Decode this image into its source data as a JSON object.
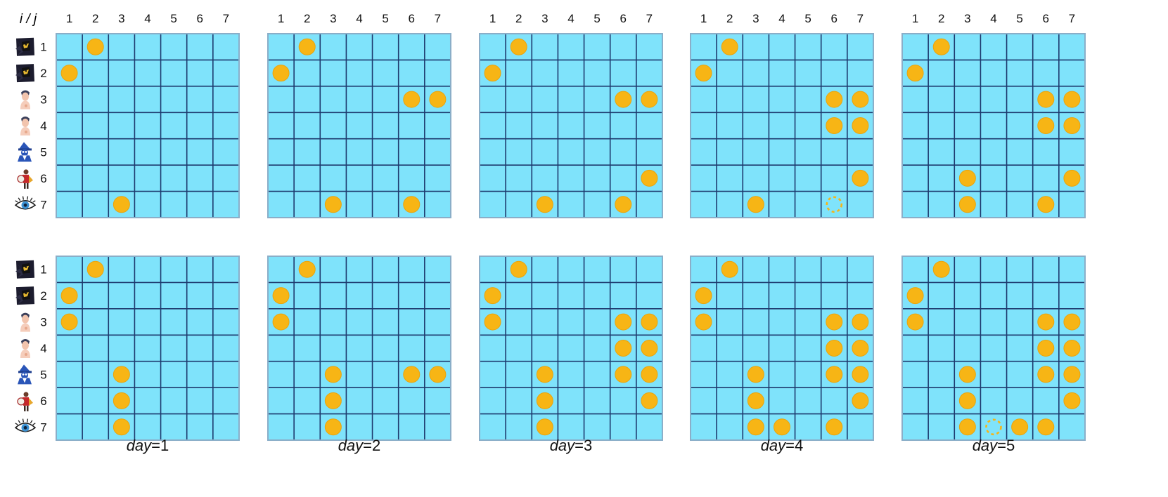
{
  "corner_label": "i / j",
  "column_labels": [
    "1",
    "2",
    "3",
    "4",
    "5",
    "6",
    "7"
  ],
  "row_labels": [
    "1",
    "2",
    "3",
    "4",
    "5",
    "6",
    "7"
  ],
  "row_icons": [
    "hooded-figure-icon",
    "hooded-figure-icon",
    "person-icon",
    "person-icon",
    "wizard-icon",
    "knight-icon",
    "eye-icon"
  ],
  "day_labels": [
    "day=1",
    "day=2",
    "day=3",
    "day=4",
    "day=5"
  ],
  "colors": {
    "cell_fill": "#7fe3fb",
    "grid_line": "#1e3a6e",
    "border": "#8aaec8",
    "coin": "#f7b515",
    "coin_edge": "#eaa40c"
  },
  "panels": [
    {
      "row": 0,
      "day": 1,
      "coins": [
        [
          1,
          2
        ],
        [
          2,
          1
        ],
        [
          7,
          3
        ]
      ],
      "dashed": []
    },
    {
      "row": 0,
      "day": 2,
      "coins": [
        [
          1,
          2
        ],
        [
          2,
          1
        ],
        [
          3,
          6
        ],
        [
          3,
          7
        ],
        [
          7,
          3
        ],
        [
          7,
          6
        ]
      ],
      "dashed": []
    },
    {
      "row": 0,
      "day": 3,
      "coins": [
        [
          1,
          2
        ],
        [
          2,
          1
        ],
        [
          3,
          6
        ],
        [
          3,
          7
        ],
        [
          6,
          7
        ],
        [
          7,
          3
        ],
        [
          7,
          6
        ]
      ],
      "dashed": []
    },
    {
      "row": 0,
      "day": 4,
      "coins": [
        [
          1,
          2
        ],
        [
          2,
          1
        ],
        [
          3,
          6
        ],
        [
          3,
          7
        ],
        [
          4,
          6
        ],
        [
          4,
          7
        ],
        [
          6,
          7
        ],
        [
          7,
          3
        ]
      ],
      "dashed": [
        [
          7,
          6
        ]
      ]
    },
    {
      "row": 0,
      "day": 5,
      "coins": [
        [
          1,
          2
        ],
        [
          2,
          1
        ],
        [
          3,
          6
        ],
        [
          3,
          7
        ],
        [
          4,
          6
        ],
        [
          4,
          7
        ],
        [
          6,
          3
        ],
        [
          6,
          7
        ],
        [
          7,
          3
        ],
        [
          7,
          6
        ]
      ],
      "dashed": []
    },
    {
      "row": 1,
      "day": 1,
      "coins": [
        [
          1,
          2
        ],
        [
          2,
          1
        ],
        [
          3,
          1
        ],
        [
          5,
          3
        ],
        [
          6,
          3
        ],
        [
          7,
          3
        ]
      ],
      "dashed": []
    },
    {
      "row": 1,
      "day": 2,
      "coins": [
        [
          1,
          2
        ],
        [
          2,
          1
        ],
        [
          3,
          1
        ],
        [
          5,
          3
        ],
        [
          5,
          6
        ],
        [
          5,
          7
        ],
        [
          6,
          3
        ],
        [
          7,
          3
        ]
      ],
      "dashed": []
    },
    {
      "row": 1,
      "day": 3,
      "coins": [
        [
          1,
          2
        ],
        [
          2,
          1
        ],
        [
          3,
          1
        ],
        [
          3,
          6
        ],
        [
          3,
          7
        ],
        [
          4,
          6
        ],
        [
          4,
          7
        ],
        [
          5,
          3
        ],
        [
          5,
          6
        ],
        [
          5,
          7
        ],
        [
          6,
          3
        ],
        [
          6,
          7
        ],
        [
          7,
          3
        ]
      ],
      "dashed": []
    },
    {
      "row": 1,
      "day": 4,
      "coins": [
        [
          1,
          2
        ],
        [
          2,
          1
        ],
        [
          3,
          1
        ],
        [
          3,
          6
        ],
        [
          3,
          7
        ],
        [
          4,
          6
        ],
        [
          4,
          7
        ],
        [
          5,
          3
        ],
        [
          5,
          6
        ],
        [
          5,
          7
        ],
        [
          6,
          3
        ],
        [
          6,
          7
        ],
        [
          7,
          3
        ],
        [
          7,
          4
        ],
        [
          7,
          6
        ]
      ],
      "dashed": []
    },
    {
      "row": 1,
      "day": 5,
      "coins": [
        [
          1,
          2
        ],
        [
          2,
          1
        ],
        [
          3,
          1
        ],
        [
          3,
          6
        ],
        [
          3,
          7
        ],
        [
          4,
          6
        ],
        [
          4,
          7
        ],
        [
          5,
          3
        ],
        [
          5,
          6
        ],
        [
          5,
          7
        ],
        [
          6,
          3
        ],
        [
          6,
          7
        ],
        [
          7,
          3
        ],
        [
          7,
          5
        ],
        [
          7,
          6
        ]
      ],
      "dashed": [
        [
          7,
          4
        ]
      ]
    }
  ]
}
